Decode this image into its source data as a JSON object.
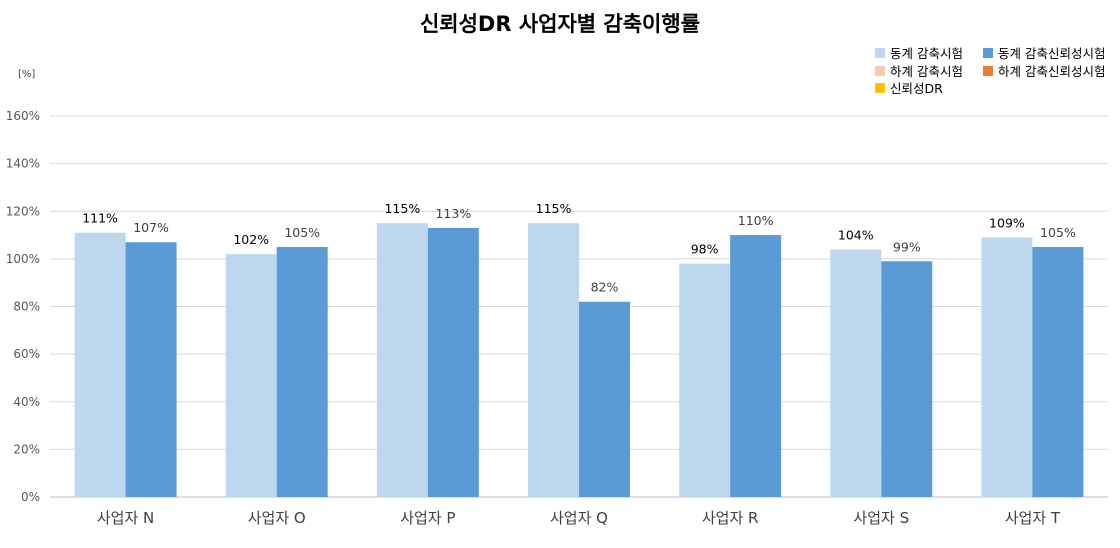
{
  "chart_data": {
    "type": "bar",
    "title": "신뢰성DR 사업자별 감축이행률",
    "unit_label": "[%]",
    "categories": [
      "사업자 N",
      "사업자 O",
      "사업자 P",
      "사업자 Q",
      "사업자 R",
      "사업자 S",
      "사업자 T"
    ],
    "series": [
      {
        "name": "동계 감축시험",
        "color": "#BDD7EE",
        "values": [
          111,
          102,
          115,
          115,
          98,
          104,
          109
        ],
        "labels": [
          "111%",
          "102%",
          "115%",
          "115%",
          "98%",
          "104%",
          "109%"
        ],
        "plotted": true
      },
      {
        "name": "동계 감축신뢰성시험",
        "color": "#5B9BD5",
        "values": [
          107,
          105,
          113,
          82,
          110,
          99,
          105
        ],
        "labels": [
          "107%",
          "105%",
          "113%",
          "82%",
          "110%",
          "99%",
          "105%"
        ],
        "plotted": true
      },
      {
        "name": "하계 감축시험",
        "color": "#F8CBAD",
        "plotted": false
      },
      {
        "name": "하계 감축신뢰성시험",
        "color": "#ED7D31",
        "plotted": false
      },
      {
        "name": "신뢰성DR",
        "color": "#FFC000",
        "plotted": false
      }
    ],
    "yticks": [
      "0%",
      "20%",
      "40%",
      "60%",
      "80%",
      "100%",
      "120%",
      "140%",
      "160%"
    ],
    "ylim": [
      0,
      160
    ],
    "grid": true,
    "legend": "top-right"
  }
}
